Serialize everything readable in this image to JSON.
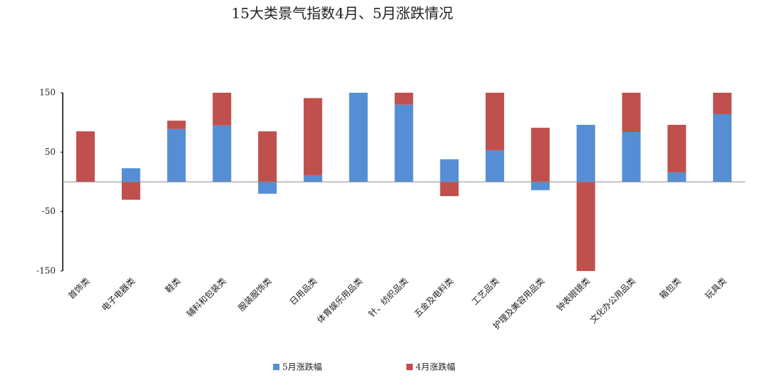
{
  "chart_data": {
    "type": "stacked_bar",
    "title": "15大类景气指数4月、5月涨跌情况",
    "categories": [
      "首饰类",
      "电子电器类",
      "鞋类",
      "辅料和包装类",
      "服装服饰类",
      "日用品类",
      "体育娱乐用品类",
      "针、纺织品类",
      "五金及电料类",
      "工艺品类",
      "护理及美容用品类",
      "钟表眼镜类",
      "文化办公用品类",
      "箱包类",
      "玩具类"
    ],
    "series": [
      {
        "name": "5月涨跌幅",
        "color": "#558ed5",
        "values": [
          0,
          23,
          89,
          95,
          -20,
          11,
          150,
          130,
          38,
          53,
          -14,
          96,
          84,
          16,
          114
        ]
      },
      {
        "name": "4月涨跌幅",
        "color": "#c0504d",
        "values": [
          85,
          -30,
          14,
          55,
          85,
          130,
          0,
          20,
          -24,
          97,
          91,
          -150,
          66,
          80,
          36
        ]
      }
    ],
    "ylim": [
      -150,
      150
    ],
    "yticks": [
      -150,
      -50,
      50,
      150
    ],
    "legend": "bottom"
  }
}
